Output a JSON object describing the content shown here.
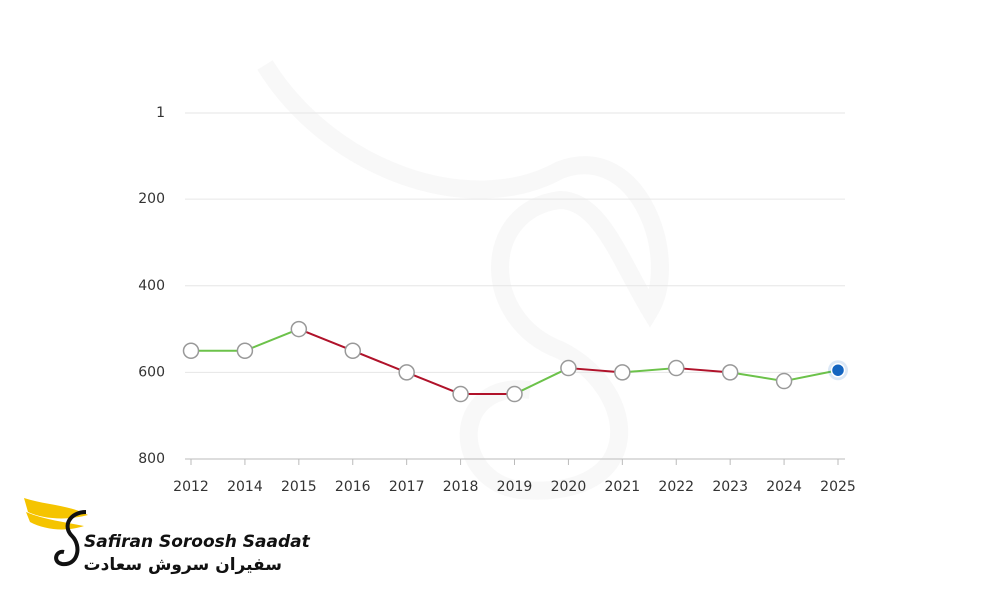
{
  "chart_data": {
    "type": "line",
    "categories": [
      "2012",
      "2014",
      "2015",
      "2016",
      "2017",
      "2018",
      "2019",
      "2020",
      "2021",
      "2022",
      "2023",
      "2024",
      "2025"
    ],
    "values": [
      550,
      550,
      500,
      550,
      600,
      650,
      650,
      590,
      600,
      590,
      600,
      620,
      595
    ],
    "segment_colors": [
      "#6cc24a",
      "#6cc24a",
      "#b0122a",
      "#b0122a",
      "#b0122a",
      "#b0122a",
      "#6cc24a",
      "#b0122a",
      "#6cc24a",
      "#b0122a",
      "#6cc24a",
      "#6cc24a"
    ],
    "last_point_color": "#1565c0",
    "ylim": [
      1,
      800
    ],
    "y_inverted": true,
    "yticks": [
      1,
      200,
      400,
      600,
      800
    ],
    "grid": true
  },
  "logo": {
    "name": "Safiran Soroosh Saadat",
    "name_fa": "سفیران سروش سعادت"
  }
}
